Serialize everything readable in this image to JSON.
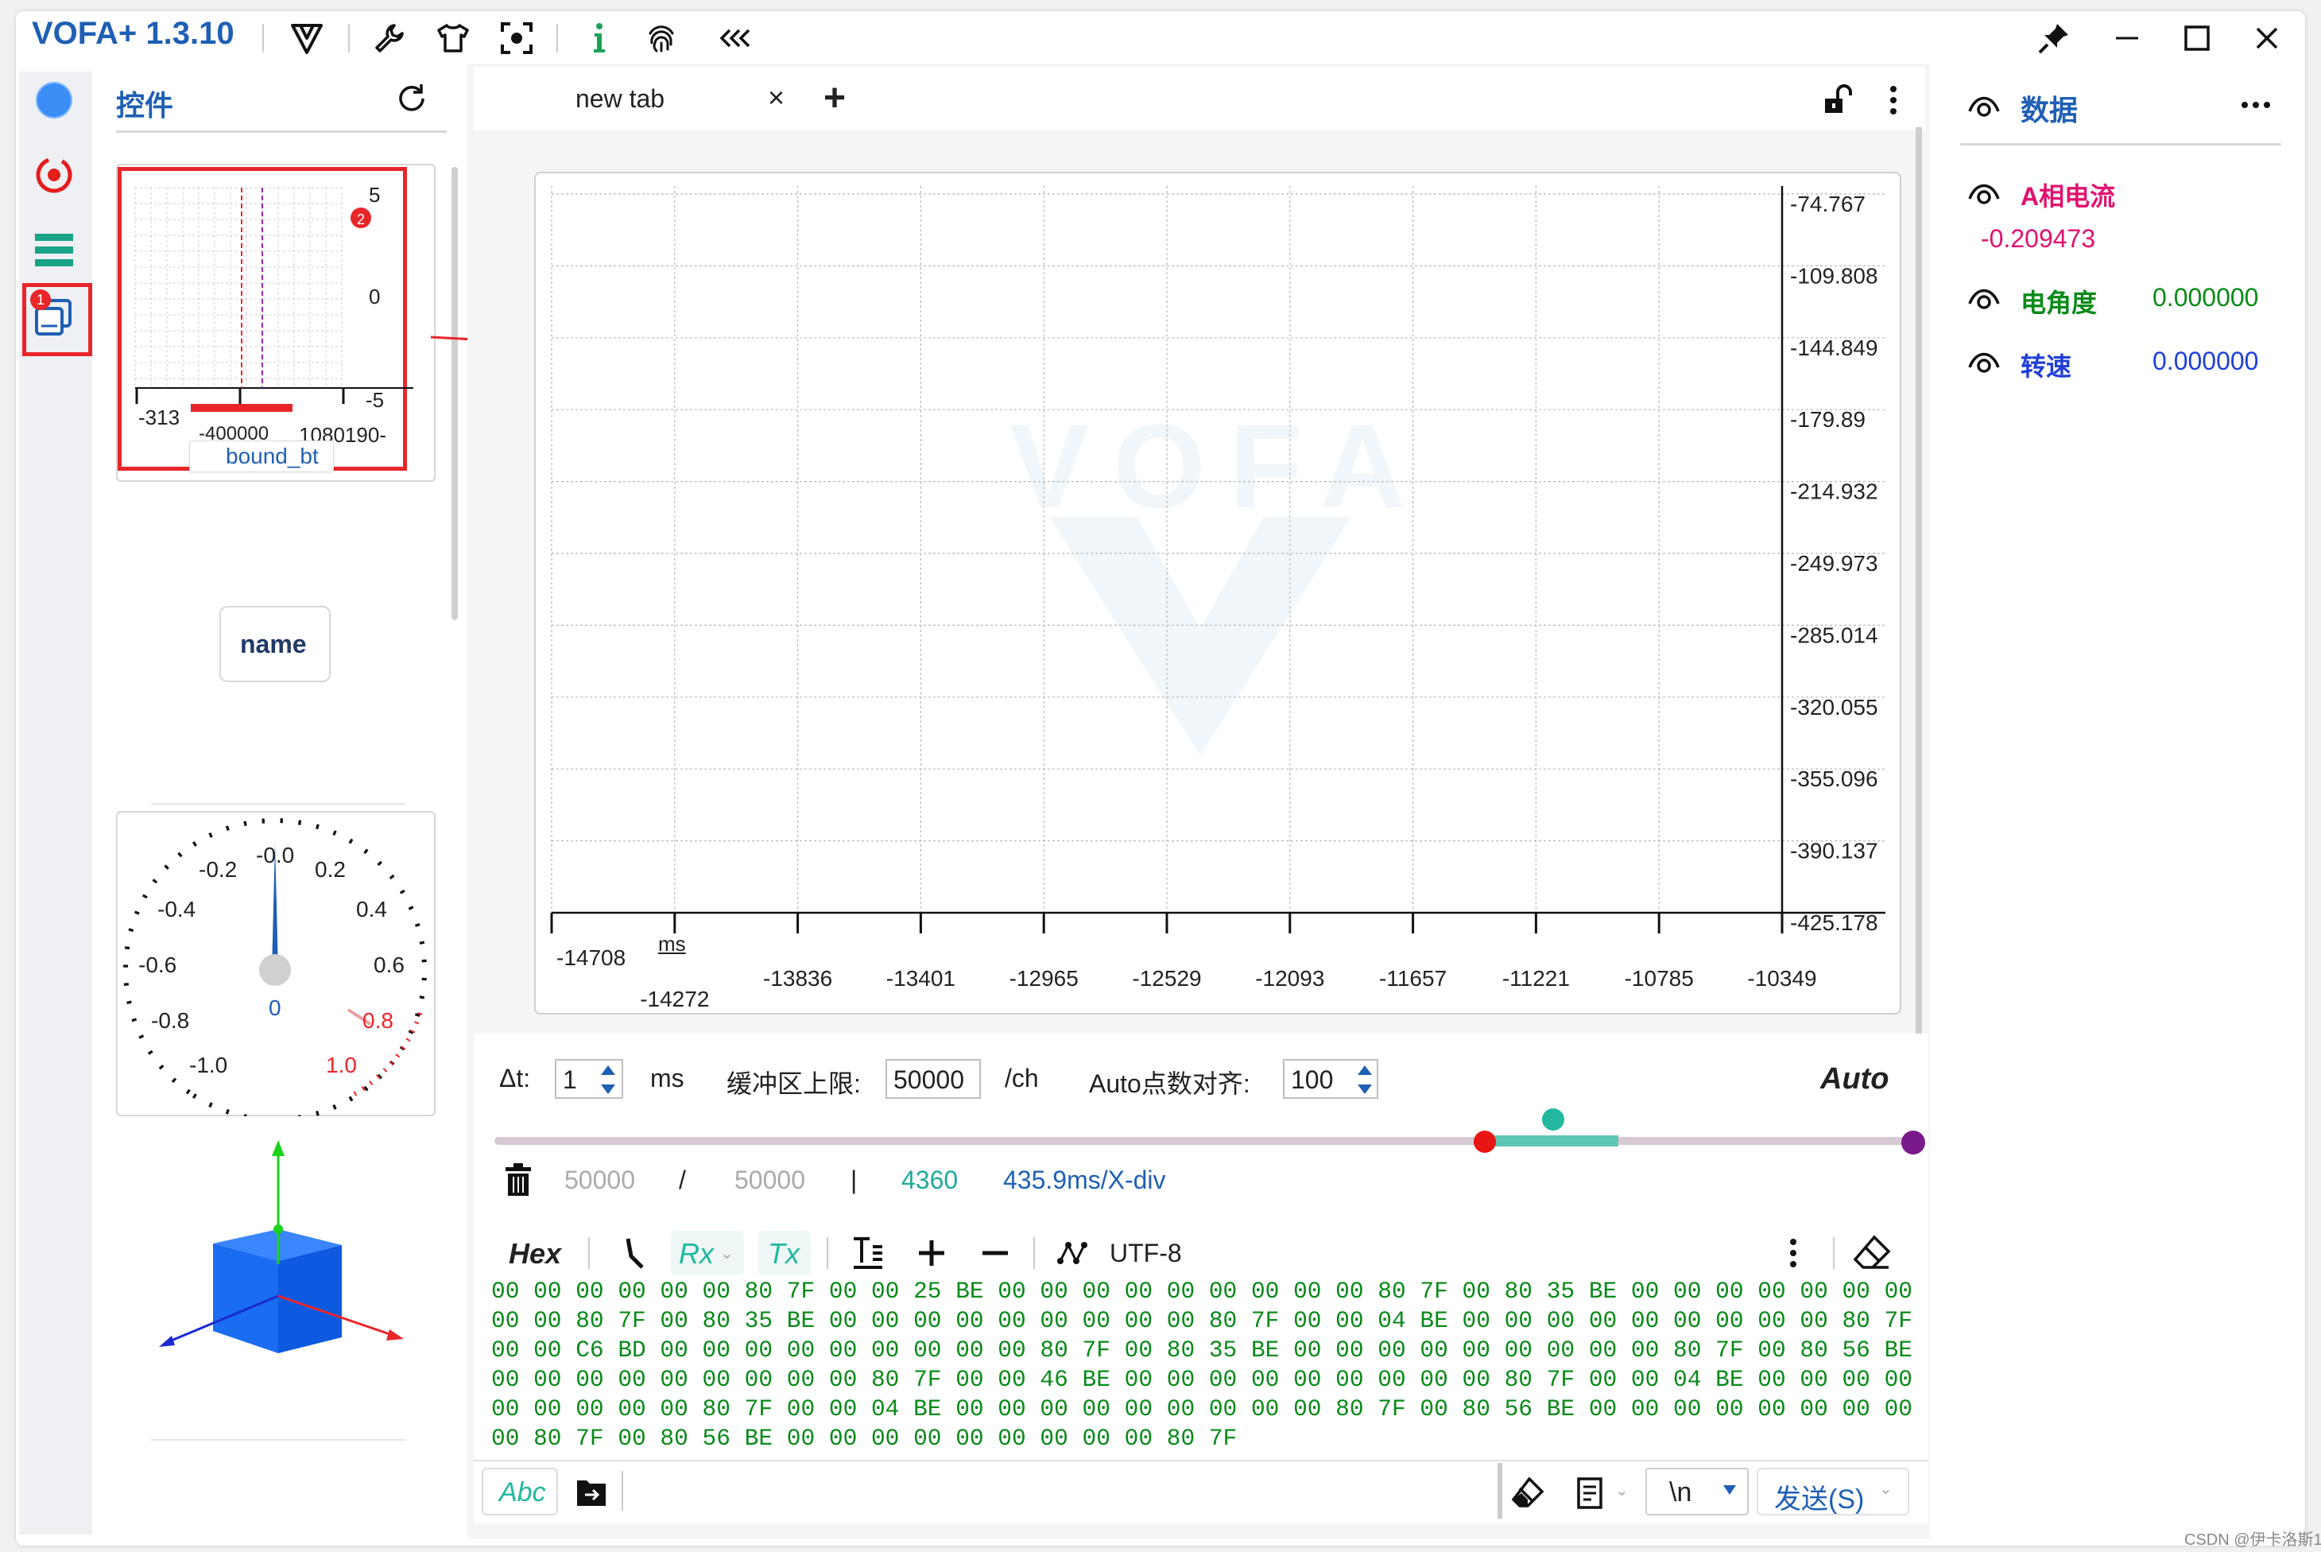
{
  "app": {
    "title": "VOFA+ 1.3.10"
  },
  "colors": {
    "accent": "#1f5fb4",
    "phase_current": "#e0126f",
    "angle": "#0a8a1a",
    "speed": "#1f3fd6",
    "rx_text": "#0a8a1a",
    "annotation_red": "#e8262a",
    "slider_teal": "#22b8a0",
    "slider_red": "#e81515",
    "slider_purple": "#7a1a8a"
  },
  "toolbar": {
    "icons": [
      "vofa-logo-icon",
      "wrench-icon",
      "shirt-icon",
      "camera-focus-icon",
      "info-icon",
      "fingerprint-icon",
      "collapse-icon"
    ],
    "window_icons": [
      "pin-icon",
      "minimize-icon",
      "maximize-icon",
      "close-icon"
    ]
  },
  "left_rail": {
    "icons": [
      "connection-status-icon",
      "record-icon",
      "menu-icon",
      "widgets-icon"
    ],
    "badge": "1"
  },
  "widgets": {
    "title": "控件",
    "mini_plot": {
      "y_labels": [
        "5",
        "0",
        "-5"
      ],
      "x_labels": [
        "-313",
        "-400000",
        "-1080190"
      ],
      "badge": "2",
      "bind_label": "bound_bt"
    },
    "name_button": "name",
    "gauge": {
      "labels_left": [
        "-0.2",
        "-0.4",
        "-0.6",
        "-0.8",
        "-1.0"
      ],
      "labels_right": [
        "0.2",
        "0.4",
        "0.6",
        "0.8",
        "1.0"
      ],
      "top_label": "-0.0",
      "value": "0"
    }
  },
  "tabs": {
    "items": [
      {
        "label": "new tab"
      }
    ],
    "close": "×",
    "add": "+"
  },
  "chart_data": {
    "type": "line",
    "series": [],
    "y_ticks": [
      "-74.767",
      "-109.808",
      "-144.849",
      "-179.89",
      "-214.932",
      "-249.973",
      "-285.014",
      "-320.055",
      "-355.096",
      "-390.137",
      "-425.178"
    ],
    "x_ticks": [
      "-14708",
      "-14272",
      "-13836",
      "-13401",
      "-12965",
      "-12529",
      "-12093",
      "-11657",
      "-11221",
      "-10785",
      "-10349"
    ],
    "x_unit": "ms",
    "ylim": [
      -425.178,
      -74.767
    ],
    "xlim": [
      -14708,
      -10349
    ],
    "grid": true,
    "watermark": "VOFA"
  },
  "controls": {
    "dt_label": "Δt:",
    "dt_value": "1",
    "dt_unit": "ms",
    "buffer_label": "缓冲区上限:",
    "buffer_value": "50000",
    "buffer_unit": "/ch",
    "auto_align_label": "Auto点数对齐:",
    "auto_align_value": "100",
    "auto_label": "Auto",
    "count_current": "50000",
    "count_sep": "/",
    "count_max": "50000",
    "bar_sep": "|",
    "points_visible": "4360",
    "time_per_div": "435.9ms/X-div"
  },
  "rx": {
    "hex_label": "Hex",
    "rx_label": "Rx",
    "tx_label": "Tx",
    "encoding": "UTF-8",
    "text": "00 00 00 00 00 00 80 7F 00 00 25 BE 00 00 00 00 00 00 00 00 00 80 7F 00 80 35 BE 00 00 00 00 00 00 00 00 00 80 7F 00 80 35 BE 00 00 00 00 00 00 00 00 00 80 7F 00 00 04 BE 00 00 00 00 00 00 00 00 00 80 7F 00 00 C6 BD 00 00 00 00 00 00 00 00 00 80 7F 00 80 35 BE 00 00 00 00 00 00 00 00 00 80 7F 00 80 56 BE 00 00 00 00 00 00 00 00 00 80 7F 00 00 46 BE 00 00 00 00 00 00 00 00 00 80 7F 00 00 04 BE 00 00 00 00 00 00 00 00 00 80 7F 00 00 04 BE 00 00 00 00 00 00 00 00 00 80 7F 00 80 56 BE 00 00 00 00 00 00 00 00 00 80 7F 00 80 56 BE 00 00 00 00 00 00 00 00 00 80 7F"
  },
  "send": {
    "abc_label": "Abc",
    "newline": "\\n",
    "send_button": "发送(S)"
  },
  "data_panel": {
    "title": "数据",
    "items": [
      {
        "name": "A相电流",
        "value": "-0.209473"
      },
      {
        "name": "电角度",
        "value": "0.000000"
      },
      {
        "name": "转速",
        "value": "0.000000"
      }
    ]
  },
  "footer": {
    "credit": "CSDN @伊卡洛斯1"
  }
}
